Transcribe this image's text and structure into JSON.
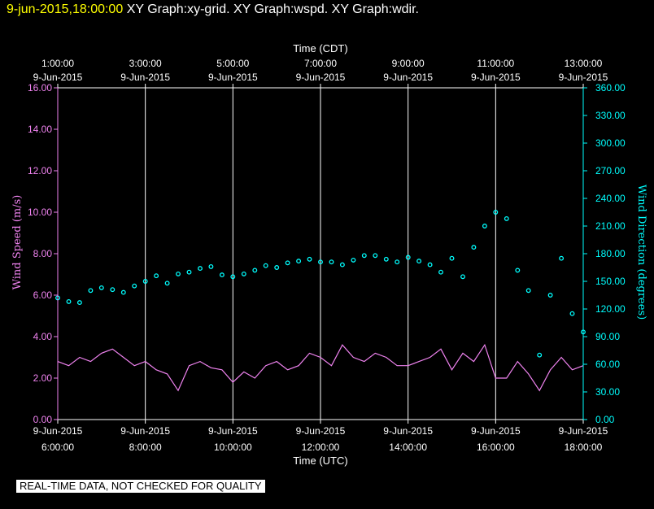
{
  "header": {
    "datetime": "9-jun-2015,18:00:00",
    "graphs": "XY Graph:xy-grid.  XY Graph:wspd.  XY Graph:wdir."
  },
  "notice": "REAL-TIME DATA, NOT CHECKED FOR QUALITY",
  "colors": {
    "background": "#000000",
    "axes": "#ffffff",
    "grid": "#ffffff",
    "wind_speed": "#ee82ee",
    "wind_direction": "#00ffff",
    "header_date": "#ffff00"
  },
  "chart_data": {
    "type": "line",
    "top_axis": {
      "label": "Time (CDT)",
      "ticks": [
        {
          "time": "1:00:00",
          "date": "9-Jun-2015"
        },
        {
          "time": "3:00:00",
          "date": "9-Jun-2015"
        },
        {
          "time": "5:00:00",
          "date": "9-Jun-2015"
        },
        {
          "time": "7:00:00",
          "date": "9-Jun-2015"
        },
        {
          "time": "9:00:00",
          "date": "9-Jun-2015"
        },
        {
          "time": "11:00:00",
          "date": "9-Jun-2015"
        },
        {
          "time": "13:00:00",
          "date": "9-Jun-2015"
        }
      ]
    },
    "bottom_axis": {
      "label": "Time (UTC)",
      "ticks": [
        {
          "date": "9-Jun-2015",
          "time": "6:00:00"
        },
        {
          "date": "9-Jun-2015",
          "time": "8:00:00"
        },
        {
          "date": "9-Jun-2015",
          "time": "10:00:00"
        },
        {
          "date": "9-Jun-2015",
          "time": "12:00:00"
        },
        {
          "date": "9-Jun-2015",
          "time": "14:00:00"
        },
        {
          "date": "9-Jun-2015",
          "time": "16:00:00"
        },
        {
          "date": "9-Jun-2015",
          "time": "18:00:00"
        }
      ]
    },
    "x_range_utc_hours": [
      6,
      18
    ],
    "left_axis": {
      "label": "Wind Speed (m/s)",
      "range": [
        0,
        16
      ],
      "ticks": [
        "0.00",
        "2.00",
        "4.00",
        "6.00",
        "8.00",
        "10.00",
        "12.00",
        "14.00",
        "16.00"
      ]
    },
    "right_axis": {
      "label": "Wind Direction (degrees)",
      "range": [
        0,
        360
      ],
      "ticks": [
        "0.00",
        "30.00",
        "60.00",
        "90.00",
        "120.00",
        "150.00",
        "180.00",
        "210.00",
        "240.00",
        "270.00",
        "300.00",
        "330.00",
        "360.00"
      ]
    },
    "grid": "vertical",
    "series": [
      {
        "style": "line",
        "axis": "left",
        "x_utc_hours": [
          6.0,
          6.25,
          6.5,
          6.75,
          7.0,
          7.25,
          7.5,
          7.75,
          8.0,
          8.25,
          8.5,
          8.75,
          9.0,
          9.25,
          9.5,
          9.75,
          10.0,
          10.25,
          10.5,
          10.75,
          11.0,
          11.25,
          11.5,
          11.75,
          12.0,
          12.25,
          12.5,
          12.75,
          13.0,
          13.25,
          13.5,
          13.75,
          14.0,
          14.25,
          14.5,
          14.75,
          15.0,
          15.25,
          15.5,
          15.75,
          16.0,
          16.25,
          16.5,
          16.75,
          17.0,
          17.25,
          17.5,
          17.75,
          18.0
        ],
        "values": [
          2.8,
          2.6,
          3.0,
          2.8,
          3.2,
          3.4,
          3.0,
          2.6,
          2.8,
          2.4,
          2.2,
          1.4,
          2.6,
          2.8,
          2.5,
          2.4,
          1.8,
          2.3,
          2.0,
          2.6,
          2.8,
          2.4,
          2.6,
          3.2,
          3.0,
          2.6,
          3.6,
          3.0,
          2.8,
          3.2,
          3.0,
          2.6,
          2.6,
          2.8,
          3.0,
          3.4,
          2.4,
          3.2,
          2.8,
          3.6,
          2.0,
          2.0,
          2.8,
          2.2,
          1.4,
          2.4,
          3.0,
          2.4,
          2.6
        ]
      },
      {
        "style": "scatter",
        "axis": "right",
        "x_utc_hours": [
          6.0,
          6.25,
          6.5,
          6.75,
          7.0,
          7.25,
          7.5,
          7.75,
          8.0,
          8.25,
          8.5,
          8.75,
          9.0,
          9.25,
          9.5,
          9.75,
          10.0,
          10.25,
          10.5,
          10.75,
          11.0,
          11.25,
          11.5,
          11.75,
          12.0,
          12.25,
          12.5,
          12.75,
          13.0,
          13.25,
          13.5,
          13.75,
          14.0,
          14.25,
          14.5,
          14.75,
          15.0,
          15.25,
          15.5,
          15.75,
          16.0,
          16.25,
          16.5,
          16.75,
          17.0,
          17.25,
          17.5,
          17.75,
          18.0
        ],
        "values": [
          132,
          128,
          127,
          140,
          143,
          141,
          138,
          145,
          150,
          156,
          148,
          158,
          160,
          164,
          166,
          157,
          155,
          158,
          162,
          167,
          165,
          170,
          172,
          174,
          171,
          171,
          168,
          173,
          178,
          178,
          174,
          171,
          176,
          172,
          168,
          160,
          175,
          155,
          187,
          210,
          225,
          218,
          162,
          140,
          70,
          135,
          175,
          115,
          95
        ]
      }
    ]
  }
}
